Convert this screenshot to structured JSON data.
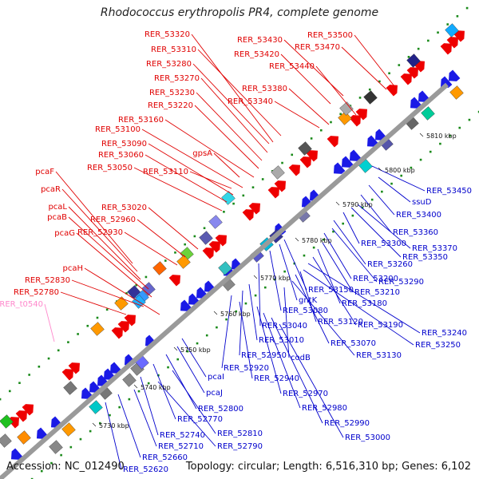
{
  "title": "Rhodococcus erythropolis PR4, complete genome",
  "footer": {
    "accession": "Accession: NC_012490",
    "summary": "Topology: circular; Length: 6,516,310 bp; Genes: 6,102"
  },
  "colors": {
    "upper_label": "#e00000",
    "lower_label": "#0000cc",
    "rna_label": "#ff88cc",
    "backbone": "#9a9a9a"
  },
  "ticks": [
    "5730 kbp",
    "5740 kbp",
    "5750 kbp",
    "5760 kbp",
    "5770 kbp",
    "5780 kbp",
    "5790 kbp",
    "5800 kbp",
    "5810 kbp"
  ],
  "upper_labels": [
    "RER_53320",
    "RER_53310",
    "RER_53280",
    "RER_53270",
    "RER_53230",
    "RER_53220",
    "RER_53160",
    "RER_53100",
    "RER_53090",
    "RER_53060",
    "RER_53050",
    "pcaF",
    "pcaR",
    "pcaL",
    "pcaB",
    "pcaG",
    "pcaH",
    "RER_52830",
    "RER_52780",
    "RER_53110",
    "gpsA",
    "RER_53020",
    "RER_52960",
    "RER_52930",
    "RER_53430",
    "RER_53420",
    "RER_53440",
    "RER_53380",
    "RER_53340",
    "RER_53500",
    "RER_53470"
  ],
  "rna_labels": [
    "RER_t0540"
  ],
  "lower_labels": [
    "RER_53450",
    "ssuD",
    "RER_53400",
    "RER_53360",
    "RER_53370",
    "RER_53350",
    "RER_53300",
    "RER_53260",
    "RER_53290",
    "RER_53200",
    "RER_53210",
    "RER_53180",
    "RER_53190",
    "RER_53240",
    "RER_53250",
    "RER_53150",
    "gntK",
    "RER_53080",
    "RER_53040",
    "RER_53120",
    "RER_53070",
    "RER_53130",
    "RER_53010",
    "codB",
    "RER_52950",
    "RER_52920",
    "RER_52940",
    "RER_52970",
    "RER_52980",
    "RER_52990",
    "RER_53000",
    "pcaI",
    "pcaJ",
    "RER_52800",
    "RER_52770",
    "RER_52810",
    "RER_52740",
    "RER_52790",
    "RER_52710",
    "RER_52660",
    "RER_52620"
  ]
}
